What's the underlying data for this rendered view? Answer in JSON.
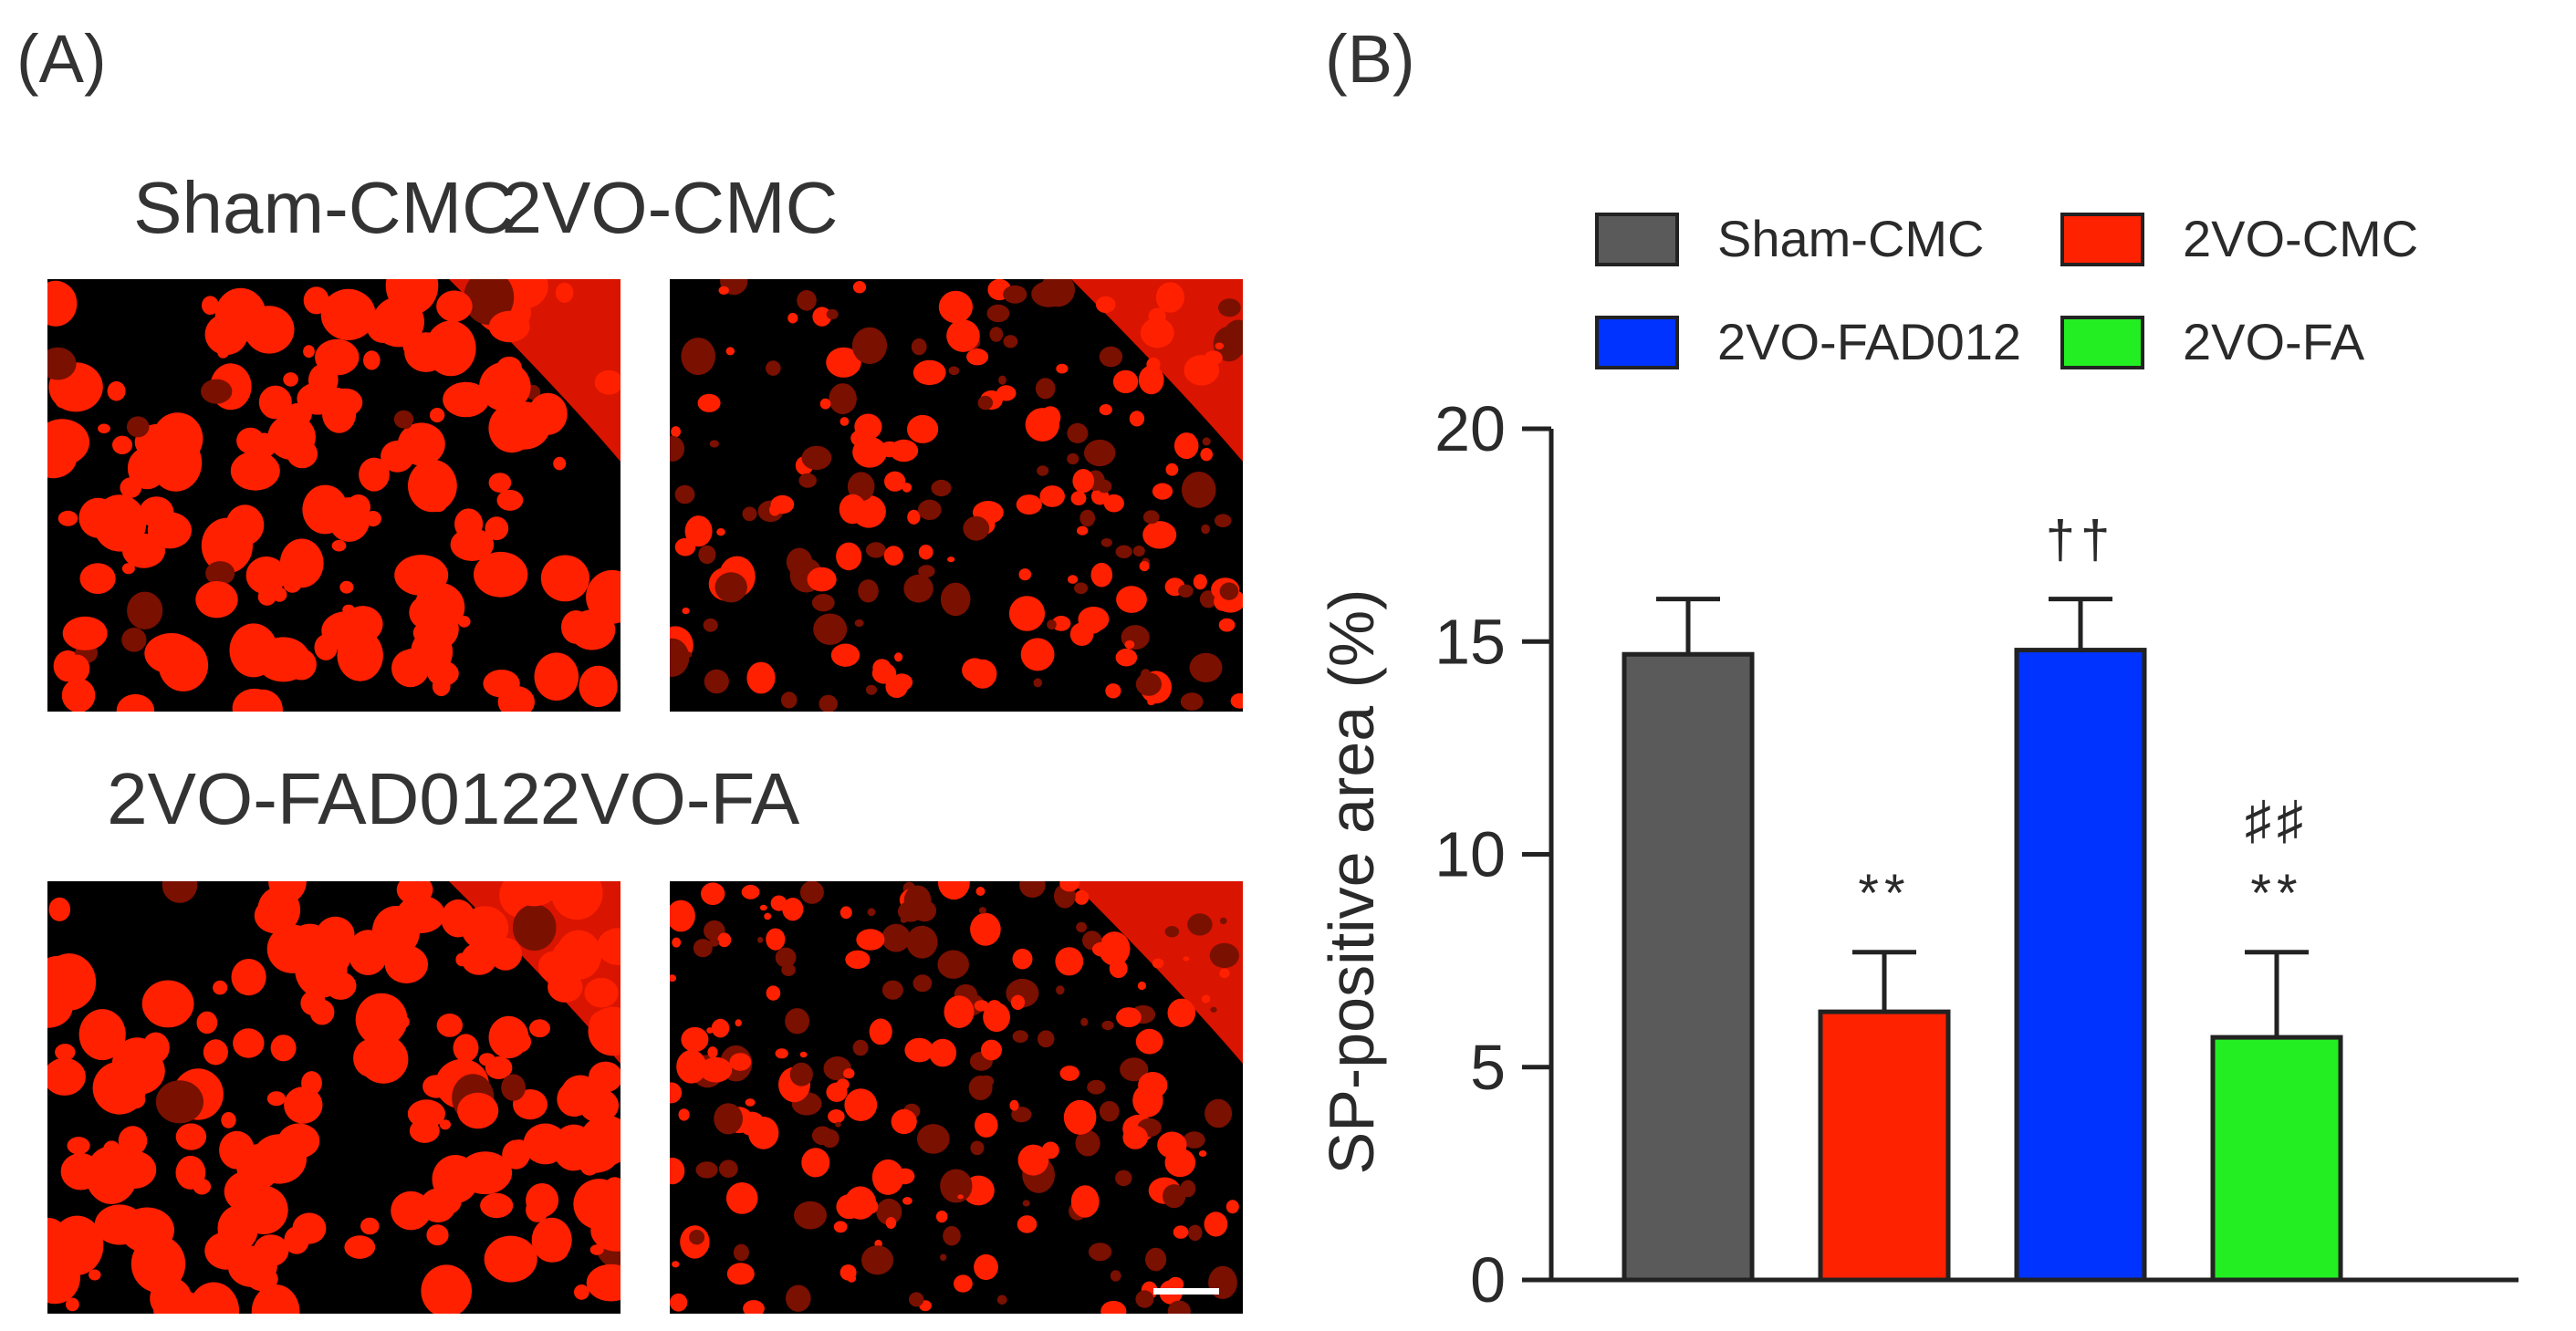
{
  "panel_a": {
    "label": "(A)",
    "images": [
      {
        "title": "Sham-CMC"
      },
      {
        "title": "2VO-CMC"
      },
      {
        "title": "2VO-FAD012"
      },
      {
        "title": "2VO-FA"
      }
    ]
  },
  "panel_b": {
    "label": "(B)"
  },
  "chart_data": {
    "type": "bar",
    "title": "",
    "xlabel": "",
    "ylabel": "SP-positive area (%)",
    "ylim": [
      0,
      20
    ],
    "yticks": [
      0,
      5,
      10,
      15,
      20
    ],
    "categories": [
      "Sham-CMC",
      "2VO-CMC",
      "2VO-FAD012",
      "2VO-FA"
    ],
    "values": [
      14.7,
      6.3,
      14.8,
      5.7
    ],
    "errors": [
      1.3,
      1.4,
      1.2,
      2.0
    ],
    "colors": [
      "#5a5a5a",
      "#ff2200",
      "#0033ff",
      "#22ee22"
    ],
    "annotations": [
      {
        "category": "2VO-CMC",
        "lines": [
          "**"
        ]
      },
      {
        "category": "2VO-FAD012",
        "lines": [
          "††"
        ]
      },
      {
        "category": "2VO-FA",
        "lines": [
          "♯♯",
          "**"
        ]
      }
    ],
    "legend_position": "top"
  }
}
